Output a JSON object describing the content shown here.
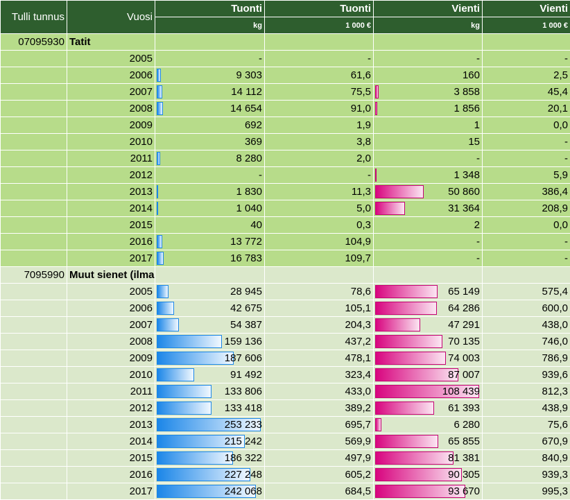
{
  "header": {
    "col_code": "Tulli tunnus",
    "col_year": "Vuosi",
    "import_kg": "Tuonti",
    "import_eur": "Tuonti",
    "export_kg": "Vienti",
    "export_eur": "Vienti",
    "unit_kg_import": "kg",
    "unit_eur_import": "1 000 €",
    "unit_kg_export": "kg",
    "unit_eur_export": "1 000 €"
  },
  "colors": {
    "header_bg": "#2e5e2e",
    "group1_bg": "#b7dc8a",
    "group2_bg": "#dbe8cb",
    "import_bar": "#1b86e8",
    "export_bar": "#d8057f"
  },
  "scales": {
    "import_kg_max": 253233,
    "export_kg_max": 108439
  },
  "groups": [
    {
      "code": "07095930",
      "name": "Tatit",
      "rows": [
        {
          "year": "2005",
          "import_kg": "-",
          "import_kg_num": 0,
          "import_eur": "-",
          "export_kg": "-",
          "export_kg_num": 0,
          "export_eur": "-"
        },
        {
          "year": "2006",
          "import_kg": "9 303",
          "import_kg_num": 9303,
          "import_eur": "61,6",
          "export_kg": "160",
          "export_kg_num": 160,
          "export_eur": "2,5"
        },
        {
          "year": "2007",
          "import_kg": "14 112",
          "import_kg_num": 14112,
          "import_eur": "75,5",
          "export_kg": "3 858",
          "export_kg_num": 3858,
          "export_eur": "45,4"
        },
        {
          "year": "2008",
          "import_kg": "14 654",
          "import_kg_num": 14654,
          "import_eur": "91,0",
          "export_kg": "1 856",
          "export_kg_num": 1856,
          "export_eur": "20,1"
        },
        {
          "year": "2009",
          "import_kg": "692",
          "import_kg_num": 692,
          "import_eur": "1,9",
          "export_kg": "1",
          "export_kg_num": 1,
          "export_eur": "0,0"
        },
        {
          "year": "2010",
          "import_kg": "369",
          "import_kg_num": 369,
          "import_eur": "3,8",
          "export_kg": "15",
          "export_kg_num": 15,
          "export_eur": "-"
        },
        {
          "year": "2011",
          "import_kg": "8 280",
          "import_kg_num": 8280,
          "import_eur": "2,0",
          "export_kg": "-",
          "export_kg_num": 0,
          "export_eur": "-"
        },
        {
          "year": "2012",
          "import_kg": "-",
          "import_kg_num": 0,
          "import_eur": "-",
          "export_kg": "1 348",
          "export_kg_num": 1348,
          "export_eur": "5,9"
        },
        {
          "year": "2013",
          "import_kg": "1 830",
          "import_kg_num": 1830,
          "import_eur": "11,3",
          "export_kg": "50 860",
          "export_kg_num": 50860,
          "export_eur": "386,4"
        },
        {
          "year": "2014",
          "import_kg": "1 040",
          "import_kg_num": 1040,
          "import_eur": "5,0",
          "export_kg": "31 364",
          "export_kg_num": 31364,
          "export_eur": "208,9"
        },
        {
          "year": "2015",
          "import_kg": "40",
          "import_kg_num": 40,
          "import_eur": "0,3",
          "export_kg": "2",
          "export_kg_num": 2,
          "export_eur": "0,0"
        },
        {
          "year": "2016",
          "import_kg": "13 772",
          "import_kg_num": 13772,
          "import_eur": "104,9",
          "export_kg": "-",
          "export_kg_num": 0,
          "export_eur": "-"
        },
        {
          "year": "2017",
          "import_kg": "16 783",
          "import_kg_num": 16783,
          "import_eur": "109,7",
          "export_kg": "-",
          "export_kg_num": 0,
          "export_eur": "-"
        }
      ]
    },
    {
      "code": "7095990",
      "name": "Muut sienet (ilman multasieniä)",
      "rows": [
        {
          "year": "2005",
          "import_kg": "28 945",
          "import_kg_num": 28945,
          "import_eur": "78,6",
          "export_kg": "65 149",
          "export_kg_num": 65149,
          "export_eur": "575,4"
        },
        {
          "year": "2006",
          "import_kg": "42 675",
          "import_kg_num": 42675,
          "import_eur": "105,1",
          "export_kg": "64 286",
          "export_kg_num": 64286,
          "export_eur": "600,0"
        },
        {
          "year": "2007",
          "import_kg": "54 387",
          "import_kg_num": 54387,
          "import_eur": "204,3",
          "export_kg": "47 291",
          "export_kg_num": 47291,
          "export_eur": "438,0"
        },
        {
          "year": "2008",
          "import_kg": "159 136",
          "import_kg_num": 159136,
          "import_eur": "437,2",
          "export_kg": "70 135",
          "export_kg_num": 70135,
          "export_eur": "746,0"
        },
        {
          "year": "2009",
          "import_kg": "187 606",
          "import_kg_num": 187606,
          "import_eur": "478,1",
          "export_kg": "74 003",
          "export_kg_num": 74003,
          "export_eur": "786,9"
        },
        {
          "year": "2010",
          "import_kg": "91 492",
          "import_kg_num": 91492,
          "import_eur": "323,4",
          "export_kg": "87 007",
          "export_kg_num": 87007,
          "export_eur": "939,6"
        },
        {
          "year": "2011",
          "import_kg": "133 806",
          "import_kg_num": 133806,
          "import_eur": "433,0",
          "export_kg": "108 439",
          "export_kg_num": 108439,
          "export_eur": "812,3"
        },
        {
          "year": "2012",
          "import_kg": "133 418",
          "import_kg_num": 133418,
          "import_eur": "389,2",
          "export_kg": "61 393",
          "export_kg_num": 61393,
          "export_eur": "438,9"
        },
        {
          "year": "2013",
          "import_kg": "253 233",
          "import_kg_num": 253233,
          "import_eur": "695,7",
          "export_kg": "6 280",
          "export_kg_num": 6280,
          "export_eur": "75,6"
        },
        {
          "year": "2014",
          "import_kg": "215 242",
          "import_kg_num": 215242,
          "import_eur": "569,9",
          "export_kg": "65 855",
          "export_kg_num": 65855,
          "export_eur": "670,9"
        },
        {
          "year": "2015",
          "import_kg": "186 322",
          "import_kg_num": 186322,
          "import_eur": "497,9",
          "export_kg": "81 381",
          "export_kg_num": 81381,
          "export_eur": "840,9"
        },
        {
          "year": "2016",
          "import_kg": "227 248",
          "import_kg_num": 227248,
          "import_eur": "605,2",
          "export_kg": "90 305",
          "export_kg_num": 90305,
          "export_eur": "939,3"
        },
        {
          "year": "2017",
          "import_kg": "242 068",
          "import_kg_num": 242068,
          "import_eur": "684,5",
          "export_kg": "93 670",
          "export_kg_num": 93670,
          "export_eur": "995,3"
        }
      ]
    }
  ]
}
